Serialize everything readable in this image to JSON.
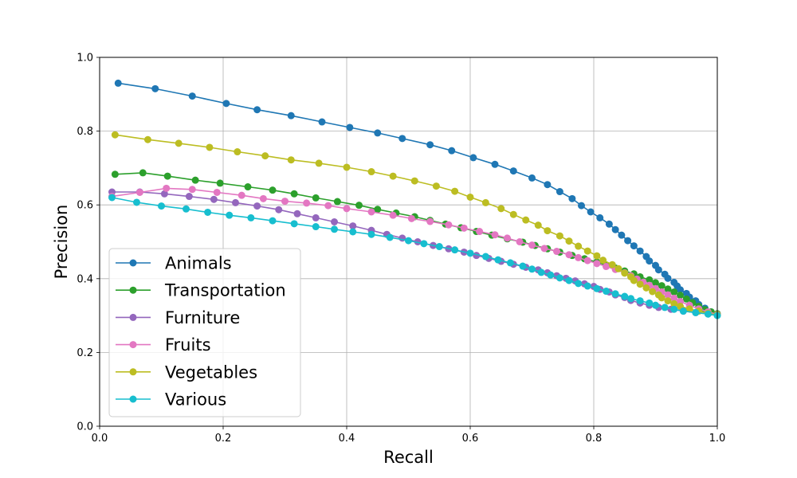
{
  "chart_data": {
    "type": "line",
    "title": "",
    "xlabel": "Recall",
    "ylabel": "Precision",
    "xlim": [
      0.0,
      1.0
    ],
    "ylim": [
      0.0,
      1.0
    ],
    "xticks": [
      "0.0",
      "0.2",
      "0.4",
      "0.6",
      "0.8",
      "1.0"
    ],
    "yticks": [
      "0.0",
      "0.2",
      "0.4",
      "0.6",
      "0.8",
      "1.0"
    ],
    "grid": true,
    "legend_position": "lower-left",
    "series": [
      {
        "name": "Animals",
        "color": "#1f77b4",
        "points": [
          [
            0.03,
            0.93
          ],
          [
            0.09,
            0.915
          ],
          [
            0.15,
            0.895
          ],
          [
            0.205,
            0.875
          ],
          [
            0.255,
            0.858
          ],
          [
            0.31,
            0.842
          ],
          [
            0.36,
            0.825
          ],
          [
            0.405,
            0.81
          ],
          [
            0.45,
            0.795
          ],
          [
            0.49,
            0.78
          ],
          [
            0.535,
            0.763
          ],
          [
            0.57,
            0.747
          ],
          [
            0.605,
            0.728
          ],
          [
            0.64,
            0.71
          ],
          [
            0.67,
            0.692
          ],
          [
            0.7,
            0.673
          ],
          [
            0.725,
            0.655
          ],
          [
            0.745,
            0.636
          ],
          [
            0.765,
            0.617
          ],
          [
            0.78,
            0.598
          ],
          [
            0.795,
            0.581
          ],
          [
            0.81,
            0.565
          ],
          [
            0.825,
            0.548
          ],
          [
            0.835,
            0.533
          ],
          [
            0.845,
            0.518
          ],
          [
            0.855,
            0.503
          ],
          [
            0.865,
            0.489
          ],
          [
            0.875,
            0.475
          ],
          [
            0.885,
            0.46
          ],
          [
            0.89,
            0.448
          ],
          [
            0.9,
            0.436
          ],
          [
            0.905,
            0.424
          ],
          [
            0.915,
            0.412
          ],
          [
            0.92,
            0.401
          ],
          [
            0.93,
            0.39
          ],
          [
            0.935,
            0.38
          ],
          [
            0.94,
            0.37
          ],
          [
            0.95,
            0.36
          ],
          [
            0.955,
            0.35
          ],
          [
            0.965,
            0.34
          ],
          [
            0.97,
            0.33
          ],
          [
            0.98,
            0.32
          ],
          [
            0.99,
            0.31
          ],
          [
            1.0,
            0.302
          ]
        ]
      },
      {
        "name": "Transportation",
        "color": "#2ca02c",
        "points": [
          [
            0.025,
            0.683
          ],
          [
            0.07,
            0.687
          ],
          [
            0.11,
            0.678
          ],
          [
            0.155,
            0.667
          ],
          [
            0.195,
            0.659
          ],
          [
            0.24,
            0.649
          ],
          [
            0.28,
            0.64
          ],
          [
            0.315,
            0.63
          ],
          [
            0.35,
            0.619
          ],
          [
            0.385,
            0.609
          ],
          [
            0.42,
            0.599
          ],
          [
            0.45,
            0.588
          ],
          [
            0.48,
            0.578
          ],
          [
            0.51,
            0.568
          ],
          [
            0.535,
            0.558
          ],
          [
            0.56,
            0.548
          ],
          [
            0.585,
            0.538
          ],
          [
            0.61,
            0.528
          ],
          [
            0.635,
            0.518
          ],
          [
            0.66,
            0.508
          ],
          [
            0.685,
            0.499
          ],
          [
            0.705,
            0.49
          ],
          [
            0.725,
            0.481
          ],
          [
            0.745,
            0.472
          ],
          [
            0.765,
            0.463
          ],
          [
            0.785,
            0.454
          ],
          [
            0.805,
            0.445
          ],
          [
            0.82,
            0.437
          ],
          [
            0.835,
            0.429
          ],
          [
            0.85,
            0.421
          ],
          [
            0.865,
            0.413
          ],
          [
            0.875,
            0.405
          ],
          [
            0.89,
            0.397
          ],
          [
            0.9,
            0.389
          ],
          [
            0.91,
            0.381
          ],
          [
            0.92,
            0.372
          ],
          [
            0.93,
            0.364
          ],
          [
            0.94,
            0.355
          ],
          [
            0.95,
            0.345
          ],
          [
            0.96,
            0.335
          ],
          [
            0.97,
            0.325
          ],
          [
            0.98,
            0.316
          ],
          [
            0.99,
            0.31
          ],
          [
            1.0,
            0.305
          ]
        ]
      },
      {
        "name": "Furniture",
        "color": "#9467bd",
        "points": [
          [
            0.02,
            0.635
          ],
          [
            0.065,
            0.635
          ],
          [
            0.105,
            0.63
          ],
          [
            0.145,
            0.623
          ],
          [
            0.185,
            0.615
          ],
          [
            0.22,
            0.606
          ],
          [
            0.255,
            0.597
          ],
          [
            0.29,
            0.587
          ],
          [
            0.32,
            0.576
          ],
          [
            0.35,
            0.565
          ],
          [
            0.38,
            0.554
          ],
          [
            0.41,
            0.543
          ],
          [
            0.44,
            0.531
          ],
          [
            0.465,
            0.52
          ],
          [
            0.49,
            0.51
          ],
          [
            0.515,
            0.5
          ],
          [
            0.54,
            0.49
          ],
          [
            0.565,
            0.481
          ],
          [
            0.59,
            0.472
          ],
          [
            0.61,
            0.463
          ],
          [
            0.63,
            0.455
          ],
          [
            0.65,
            0.447
          ],
          [
            0.67,
            0.439
          ],
          [
            0.69,
            0.431
          ],
          [
            0.71,
            0.424
          ],
          [
            0.725,
            0.416
          ],
          [
            0.74,
            0.408
          ],
          [
            0.755,
            0.401
          ],
          [
            0.77,
            0.394
          ],
          [
            0.785,
            0.386
          ],
          [
            0.8,
            0.379
          ],
          [
            0.81,
            0.371
          ],
          [
            0.825,
            0.364
          ],
          [
            0.835,
            0.356
          ],
          [
            0.85,
            0.349
          ],
          [
            0.86,
            0.341
          ],
          [
            0.875,
            0.334
          ],
          [
            0.89,
            0.328
          ],
          [
            0.905,
            0.322
          ],
          [
            0.925,
            0.317
          ],
          [
            0.945,
            0.312
          ],
          [
            0.965,
            0.308
          ],
          [
            0.985,
            0.305
          ],
          [
            1.0,
            0.302
          ]
        ]
      },
      {
        "name": "Fruits",
        "color": "#e377c2",
        "points": [
          [
            0.02,
            0.623
          ],
          [
            0.065,
            0.634
          ],
          [
            0.108,
            0.645
          ],
          [
            0.15,
            0.642
          ],
          [
            0.19,
            0.634
          ],
          [
            0.23,
            0.626
          ],
          [
            0.265,
            0.617
          ],
          [
            0.3,
            0.61
          ],
          [
            0.335,
            0.605
          ],
          [
            0.37,
            0.598
          ],
          [
            0.4,
            0.59
          ],
          [
            0.44,
            0.581
          ],
          [
            0.475,
            0.572
          ],
          [
            0.505,
            0.563
          ],
          [
            0.535,
            0.555
          ],
          [
            0.565,
            0.546
          ],
          [
            0.59,
            0.537
          ],
          [
            0.615,
            0.528
          ],
          [
            0.64,
            0.519
          ],
          [
            0.66,
            0.51
          ],
          [
            0.68,
            0.5
          ],
          [
            0.7,
            0.491
          ],
          [
            0.72,
            0.482
          ],
          [
            0.74,
            0.474
          ],
          [
            0.76,
            0.465
          ],
          [
            0.775,
            0.457
          ],
          [
            0.79,
            0.449
          ],
          [
            0.805,
            0.441
          ],
          [
            0.82,
            0.433
          ],
          [
            0.835,
            0.425
          ],
          [
            0.85,
            0.416
          ],
          [
            0.86,
            0.408
          ],
          [
            0.87,
            0.399
          ],
          [
            0.88,
            0.39
          ],
          [
            0.89,
            0.382
          ],
          [
            0.9,
            0.373
          ],
          [
            0.91,
            0.364
          ],
          [
            0.92,
            0.356
          ],
          [
            0.93,
            0.347
          ],
          [
            0.94,
            0.338
          ],
          [
            0.955,
            0.328
          ],
          [
            0.97,
            0.318
          ],
          [
            0.985,
            0.31
          ],
          [
            1.0,
            0.303
          ]
        ]
      },
      {
        "name": "Vegetables",
        "color": "#bcbd22",
        "points": [
          [
            0.025,
            0.79
          ],
          [
            0.078,
            0.777
          ],
          [
            0.128,
            0.767
          ],
          [
            0.178,
            0.756
          ],
          [
            0.223,
            0.744
          ],
          [
            0.268,
            0.733
          ],
          [
            0.31,
            0.722
          ],
          [
            0.355,
            0.713
          ],
          [
            0.4,
            0.702
          ],
          [
            0.44,
            0.69
          ],
          [
            0.475,
            0.678
          ],
          [
            0.51,
            0.665
          ],
          [
            0.545,
            0.651
          ],
          [
            0.575,
            0.637
          ],
          [
            0.6,
            0.621
          ],
          [
            0.625,
            0.606
          ],
          [
            0.65,
            0.59
          ],
          [
            0.67,
            0.574
          ],
          [
            0.69,
            0.559
          ],
          [
            0.71,
            0.545
          ],
          [
            0.725,
            0.53
          ],
          [
            0.745,
            0.516
          ],
          [
            0.76,
            0.502
          ],
          [
            0.775,
            0.488
          ],
          [
            0.79,
            0.475
          ],
          [
            0.805,
            0.462
          ],
          [
            0.815,
            0.45
          ],
          [
            0.83,
            0.438
          ],
          [
            0.84,
            0.427
          ],
          [
            0.85,
            0.415
          ],
          [
            0.86,
            0.405
          ],
          [
            0.865,
            0.395
          ],
          [
            0.875,
            0.385
          ],
          [
            0.885,
            0.375
          ],
          [
            0.895,
            0.365
          ],
          [
            0.905,
            0.356
          ],
          [
            0.91,
            0.348
          ],
          [
            0.92,
            0.34
          ],
          [
            0.93,
            0.332
          ],
          [
            0.94,
            0.325
          ],
          [
            0.955,
            0.318
          ],
          [
            0.97,
            0.312
          ],
          [
            0.985,
            0.306
          ],
          [
            1.0,
            0.302
          ]
        ]
      },
      {
        "name": "Various",
        "color": "#17becf",
        "points": [
          [
            0.02,
            0.62
          ],
          [
            0.06,
            0.607
          ],
          [
            0.1,
            0.597
          ],
          [
            0.14,
            0.589
          ],
          [
            0.175,
            0.58
          ],
          [
            0.21,
            0.572
          ],
          [
            0.245,
            0.565
          ],
          [
            0.28,
            0.557
          ],
          [
            0.315,
            0.549
          ],
          [
            0.35,
            0.541
          ],
          [
            0.38,
            0.534
          ],
          [
            0.41,
            0.527
          ],
          [
            0.44,
            0.52
          ],
          [
            0.47,
            0.512
          ],
          [
            0.5,
            0.503
          ],
          [
            0.525,
            0.495
          ],
          [
            0.55,
            0.487
          ],
          [
            0.575,
            0.478
          ],
          [
            0.6,
            0.469
          ],
          [
            0.625,
            0.46
          ],
          [
            0.645,
            0.451
          ],
          [
            0.665,
            0.443
          ],
          [
            0.685,
            0.434
          ],
          [
            0.7,
            0.426
          ],
          [
            0.715,
            0.417
          ],
          [
            0.73,
            0.41
          ],
          [
            0.745,
            0.402
          ],
          [
            0.76,
            0.395
          ],
          [
            0.775,
            0.387
          ],
          [
            0.79,
            0.38
          ],
          [
            0.805,
            0.373
          ],
          [
            0.82,
            0.366
          ],
          [
            0.835,
            0.359
          ],
          [
            0.85,
            0.352
          ],
          [
            0.86,
            0.346
          ],
          [
            0.875,
            0.34
          ],
          [
            0.89,
            0.334
          ],
          [
            0.9,
            0.328
          ],
          [
            0.915,
            0.322
          ],
          [
            0.93,
            0.317
          ],
          [
            0.945,
            0.312
          ],
          [
            0.965,
            0.308
          ],
          [
            0.985,
            0.304
          ],
          [
            1.0,
            0.3
          ]
        ]
      }
    ]
  }
}
